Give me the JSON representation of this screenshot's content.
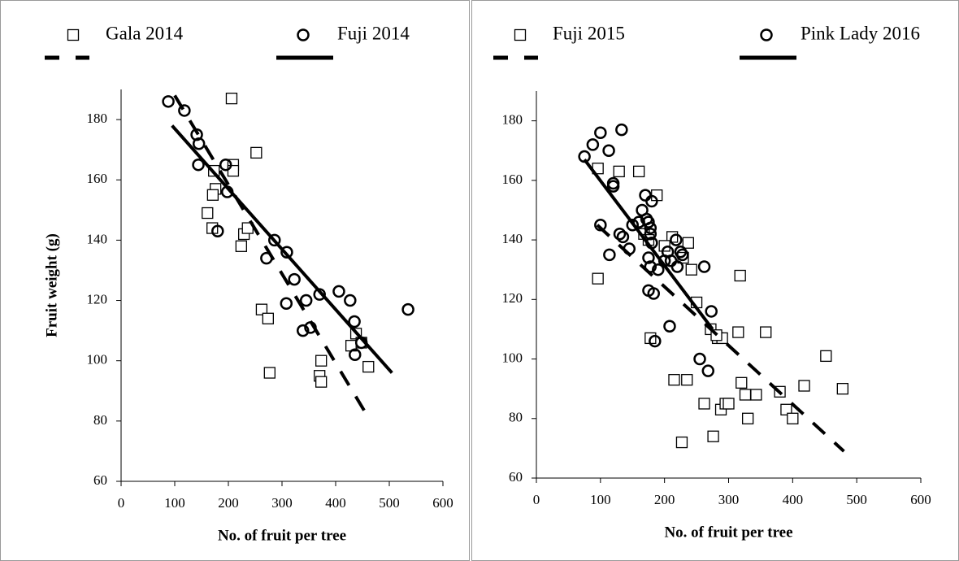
{
  "chart_data": [
    {
      "type": "scatter",
      "xlabel": "No. of fruit per tree",
      "ylabel": "Fruit  weight (g)",
      "xlim": [
        0,
        600
      ],
      "ylim": [
        60,
        190
      ],
      "xticks": [
        0,
        100,
        200,
        300,
        400,
        500,
        600
      ],
      "yticks": [
        60,
        80,
        100,
        120,
        140,
        160,
        180
      ],
      "series": [
        {
          "name": "Gala 2014",
          "color": "#000000",
          "marker": "square",
          "trend_dash": true,
          "x": [
            206,
            252,
            209,
            209,
            173,
            176,
            171,
            161,
            170,
            229,
            224,
            236,
            262,
            274,
            277,
            373,
            370,
            373,
            429,
            438,
            461,
            448
          ],
          "y": [
            187,
            169,
            165,
            163,
            163,
            157,
            155,
            149,
            144,
            142,
            138,
            144,
            117,
            114,
            96,
            100,
            95,
            93,
            105,
            109,
            98,
            106
          ],
          "trend": {
            "x": [
              100,
              465
            ],
            "y": [
              188,
              80
            ]
          }
        },
        {
          "name": "Fuji 2014",
          "color": "#000000",
          "marker": "circle",
          "trend_dash": false,
          "x": [
            88,
            118,
            141,
            145,
            144,
            195,
            198,
            180,
            286,
            309,
            323,
            271,
            370,
            406,
            427,
            345,
            308,
            353,
            339,
            435,
            436,
            448,
            535
          ],
          "y": [
            186,
            183,
            175,
            172,
            165,
            165,
            156,
            143,
            140,
            136,
            127,
            134,
            122,
            123,
            120,
            120,
            119,
            111,
            110,
            113,
            102,
            106,
            117
          ],
          "trend": {
            "x": [
              95,
              505
            ],
            "y": [
              178,
              96
            ]
          }
        }
      ]
    },
    {
      "type": "scatter",
      "xlabel": "No. of fruit per tree",
      "xlim": [
        0,
        600
      ],
      "ylim": [
        60,
        190
      ],
      "xticks": [
        0,
        100,
        200,
        300,
        400,
        500,
        600
      ],
      "yticks": [
        60,
        80,
        100,
        120,
        140,
        160,
        180
      ],
      "series": [
        {
          "name": "Fuji 2015",
          "color": "#000000",
          "marker": "square",
          "trend_dash": true,
          "x": [
            96,
            129,
            96,
            188,
            178,
            215,
            235,
            227,
            262,
            276,
            283,
            290,
            315,
            318,
            320,
            326,
            330,
            343,
            358,
            380,
            390,
            400,
            418,
            452,
            478,
            288,
            295,
            300,
            212,
            237,
            242,
            229,
            160,
            168,
            175,
            200,
            250,
            272,
            281
          ],
          "y": [
            164,
            163,
            127,
            155,
            107,
            93,
            93,
            72,
            85,
            74,
            107,
            107,
            109,
            128,
            92,
            88,
            80,
            88,
            109,
            89,
            83,
            80,
            91,
            101,
            90,
            83,
            85,
            85,
            141,
            139,
            130,
            134,
            163,
            142,
            140,
            138,
            119,
            110,
            108
          ],
          "trend": {
            "x": [
              95,
              480
            ],
            "y": [
              145,
              69
            ]
          }
        },
        {
          "name": "Pink Lady 2016",
          "color": "#000000",
          "marker": "circle",
          "trend_dash": false,
          "x": [
            75,
            88,
            100,
            113,
            133,
            120,
            120,
            100,
            114,
            130,
            135,
            145,
            150,
            160,
            165,
            170,
            172,
            175,
            178,
            175,
            175,
            178,
            180,
            180,
            183,
            185,
            190,
            200,
            205,
            210,
            208,
            218,
            220,
            225,
            228,
            255,
            262,
            268,
            273,
            178
          ],
          "y": [
            168,
            172,
            176,
            170,
            177,
            159,
            158,
            145,
            135,
            142,
            141,
            137,
            145,
            146,
            150,
            155,
            147,
            146,
            144,
            134,
            123,
            131,
            139,
            153,
            122,
            106,
            130,
            133,
            136,
            133,
            111,
            140,
            131,
            136,
            135,
            100,
            131,
            96,
            116,
            142
          ],
          "trend": {
            "x": [
              75,
              275
            ],
            "y": [
              167,
              110
            ]
          }
        }
      ]
    }
  ]
}
